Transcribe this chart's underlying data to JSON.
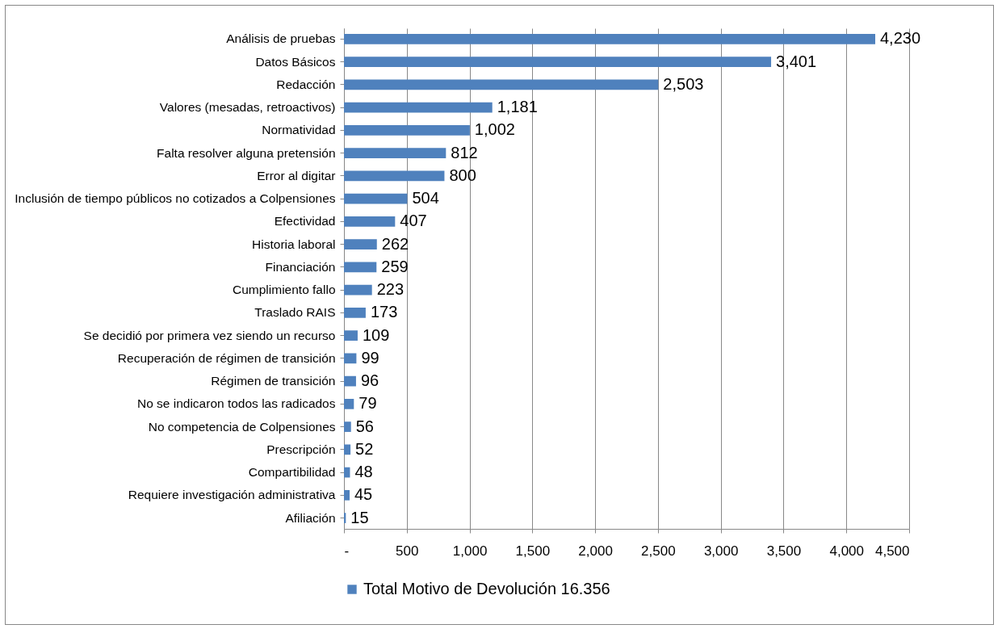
{
  "chart_data": {
    "type": "bar",
    "orientation": "horizontal",
    "categories": [
      "Análisis de pruebas",
      "Datos Básicos",
      "Redacción",
      "Valores (mesadas, retroactivos)",
      "Normatividad",
      "Falta resolver alguna pretensión",
      "Error al digitar",
      "Inclusión de tiempo públicos no cotizados a Colpensiones",
      "Efectividad",
      "Historia laboral",
      "Financiación",
      "Cumplimiento fallo",
      "Traslado RAIS",
      "Se decidió por primera vez siendo un recurso",
      "Recuperación de régimen de transición",
      "Régimen de transición",
      "No se indicaron todos las radicados",
      "No competencia de Colpensiones",
      "Prescripción",
      "Compartibilidad",
      "Requiere investigación administrativa",
      "Afiliación"
    ],
    "series": [
      {
        "name": "Total Motivo de Devolución 16.356",
        "color": "#4f81bd",
        "values": [
          4230,
          3401,
          2503,
          1181,
          1002,
          812,
          800,
          504,
          407,
          262,
          259,
          223,
          173,
          109,
          99,
          96,
          79,
          56,
          52,
          48,
          45,
          15
        ],
        "value_labels": [
          "4,230",
          "3,401",
          "2,503",
          "1,181",
          "1,002",
          "812",
          "800",
          "504",
          "407",
          "262",
          "259",
          "223",
          "173",
          "109",
          "99",
          "96",
          "79",
          "56",
          "52",
          "48",
          "45",
          "15"
        ]
      }
    ],
    "xlim": [
      0,
      4500
    ],
    "xticks": [
      {
        "value": 0,
        "label": "-"
      },
      500,
      {
        "value": 1000,
        "label": "1,000"
      },
      {
        "value": 1500,
        "label": "1,500"
      },
      {
        "value": 2000,
        "label": "2,000"
      },
      {
        "value": 2500,
        "label": "2,500"
      },
      {
        "value": 3000,
        "label": "3,000"
      },
      {
        "value": 3500,
        "label": "3,500"
      },
      {
        "value": 4000,
        "label": "4,000"
      },
      {
        "value": 4500,
        "label": "4,500"
      }
    ],
    "grid": "x",
    "legend": "bottom"
  }
}
